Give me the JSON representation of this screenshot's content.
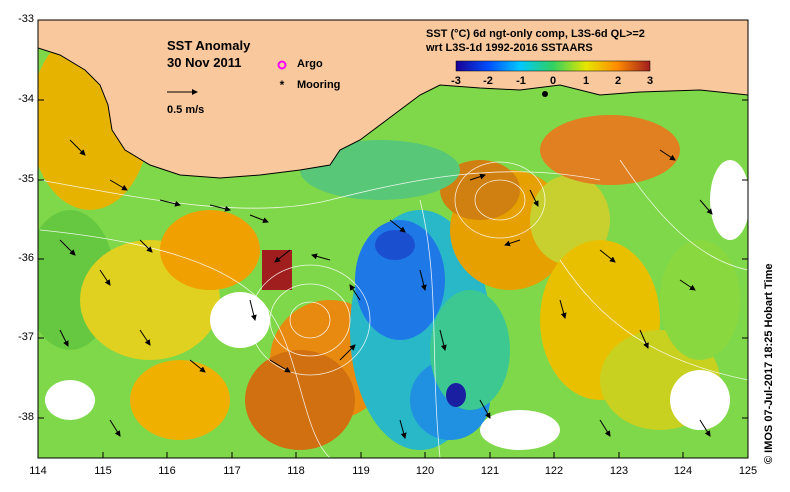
{
  "title": "SST Anomaly",
  "date": "30 Nov 2011",
  "scale_label": "0.5 m/s",
  "legend": {
    "argo": "Argo",
    "mooring": "Mooring"
  },
  "product_line1": "SST (°C) 6d ngt-only comp, L3S-6d QL>=2",
  "product_line2": "wrt L3S-1d 1992-2016 SSTAARS",
  "colorbar_ticks": [
    "-3",
    "-2",
    "-1",
    "0",
    "1",
    "2",
    "3"
  ],
  "lat_labels": [
    "-33",
    "-34",
    "-35",
    "-36",
    "-37",
    "-38"
  ],
  "lon_labels": [
    "114",
    "115",
    "116",
    "117",
    "118",
    "119",
    "120",
    "121",
    "122",
    "123",
    "124",
    "125"
  ],
  "credit": "© IMOS 07-Jul-2017 18:25 Hobart Time",
  "colors": {
    "land": "#f9c89c",
    "argo": "#ff00ff",
    "mooring": "#000000"
  }
}
